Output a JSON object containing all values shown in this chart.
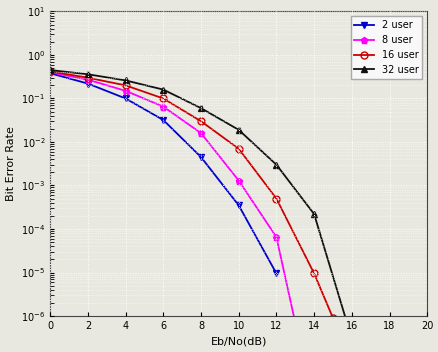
{
  "title": "",
  "xlabel": "Eb/No(dB)",
  "ylabel": "Bit Error Rate",
  "xlim": [
    0,
    20
  ],
  "ylim_log": [
    -6,
    1
  ],
  "yticks_log": [
    -6,
    -5,
    -4,
    -3,
    -2,
    -1,
    0
  ],
  "xticks": [
    0,
    2,
    4,
    6,
    8,
    10,
    12,
    14,
    16,
    18,
    20
  ],
  "series": [
    {
      "label": "2 user",
      "color": "#0000cc",
      "marker": "v",
      "markersize": 5,
      "x": [
        0,
        2,
        4,
        6,
        8,
        10,
        12
      ],
      "y": [
        0.38,
        0.22,
        0.1,
        0.032,
        0.0045,
        0.00035,
        9.5e-06
      ]
    },
    {
      "label": "8 user",
      "color": "#ff00ff",
      "marker": "p",
      "markersize": 5,
      "x": [
        0,
        2,
        4,
        6,
        8,
        10,
        12,
        13
      ],
      "y": [
        0.4,
        0.27,
        0.15,
        0.065,
        0.016,
        0.0013,
        6.5e-05,
        7e-07
      ]
    },
    {
      "label": "16 user",
      "color": "#cc0000",
      "marker": "o",
      "markersize": 5,
      "x": [
        0,
        2,
        4,
        6,
        8,
        10,
        12,
        14,
        15
      ],
      "y": [
        0.42,
        0.3,
        0.2,
        0.1,
        0.03,
        0.007,
        0.0005,
        9.5e-06,
        9e-07
      ]
    },
    {
      "label": "32 user",
      "color": "#111111",
      "marker": "^",
      "markersize": 5,
      "x": [
        0,
        2,
        4,
        6,
        8,
        10,
        12,
        14,
        16
      ],
      "y": [
        0.45,
        0.36,
        0.26,
        0.16,
        0.06,
        0.019,
        0.003,
        0.00022,
        3e-07
      ]
    }
  ],
  "background_color": "#e8e8e0",
  "grid_color": "#ffffff",
  "grid_linestyle": ":",
  "legend_loc": "upper right",
  "legend_fontsize": 7,
  "tick_fontsize": 7,
  "label_fontsize": 8,
  "linewidth": 1.3
}
